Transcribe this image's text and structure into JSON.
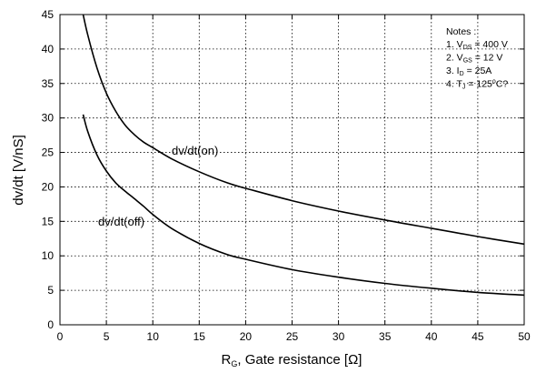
{
  "chart_data": {
    "type": "line",
    "xlabel_main": "R",
    "xlabel_sub": "G",
    "xlabel_rest": ", Gate resistance [Ω]",
    "ylabel": "dv/dt [V/nS]",
    "xlim": [
      0,
      50
    ],
    "ylim": [
      0,
      45
    ],
    "x_ticks": [
      0,
      5,
      10,
      15,
      20,
      25,
      30,
      35,
      40,
      45,
      50
    ],
    "y_ticks": [
      0,
      5,
      10,
      15,
      20,
      25,
      30,
      35,
      40,
      45
    ],
    "grid": true,
    "series": [
      {
        "name": "dv/dt(on)",
        "x": [
          2.5,
          3,
          4,
          5,
          6,
          7,
          8,
          9,
          10,
          12,
          15,
          18,
          20,
          25,
          30,
          35,
          40,
          45,
          50
        ],
        "y": [
          45,
          42,
          37.2,
          33.6,
          31,
          29,
          27.6,
          26.5,
          25.7,
          24.1,
          22.2,
          20.6,
          19.8,
          18,
          16.5,
          15.2,
          14,
          12.8,
          11.7
        ]
      },
      {
        "name": "dv/dt(off)",
        "x": [
          2.5,
          3,
          4,
          5,
          6,
          7,
          8,
          9,
          10,
          12,
          15,
          18,
          20,
          25,
          30,
          35,
          40,
          45,
          50
        ],
        "y": [
          30.5,
          28,
          24.6,
          22.3,
          20.6,
          19.4,
          18.3,
          17.2,
          16,
          14,
          11.8,
          10.2,
          9.5,
          8,
          6.9,
          6,
          5.3,
          4.7,
          4.3
        ]
      }
    ],
    "notes": {
      "title": "Notes :",
      "items": [
        {
          "prefix": "1. V",
          "sub": "DS",
          "suffix": " = 400 V"
        },
        {
          "prefix": "2. V",
          "sub": "GS",
          "suffix": " = 12 V"
        },
        {
          "prefix": "3. I",
          "sub": "D",
          "suffix": " = 25A"
        },
        {
          "prefix": "4. T",
          "sub": "J",
          "suffix": " = 125",
          "sup": "o",
          "suffix2": "C?"
        }
      ]
    }
  }
}
